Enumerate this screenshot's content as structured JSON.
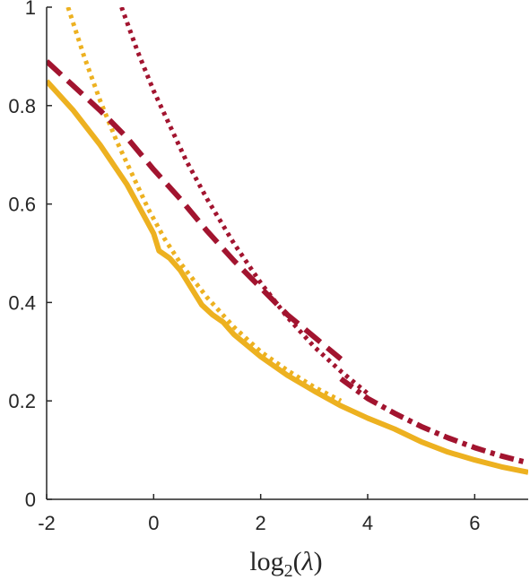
{
  "chart_data": {
    "type": "line",
    "title": "",
    "xlabel": "log2(λ)",
    "ylabel": "",
    "xlim": [
      -2,
      7
    ],
    "ylim": [
      0,
      1
    ],
    "xticks": [
      -2,
      0,
      2,
      4,
      6
    ],
    "yticks": [
      0,
      0.2,
      0.4,
      0.6,
      0.8,
      1
    ],
    "xtick_labels": [
      "-2",
      "0",
      "2",
      "4",
      "6"
    ],
    "ytick_labels": [
      "0",
      "0.2",
      "0.4",
      "0.6",
      "0.8",
      "1"
    ],
    "grid": false,
    "legend": "none",
    "colors": {
      "gold": "#EDB120",
      "crimson": "#A2142F",
      "axis": "#262626"
    },
    "series": [
      {
        "color": "#EDB120",
        "dash": "solid",
        "x": [
          -2,
          -1.5,
          -1,
          -0.5,
          0,
          0.1,
          0.3,
          0.5,
          0.7,
          0.9,
          1.1,
          1.3,
          1.5,
          2,
          2.5,
          3,
          3.5,
          4,
          4.5,
          5,
          5.5,
          6,
          6.5,
          7
        ],
        "y": [
          0.85,
          0.79,
          0.72,
          0.64,
          0.54,
          0.505,
          0.49,
          0.465,
          0.43,
          0.395,
          0.375,
          0.36,
          0.335,
          0.29,
          0.252,
          0.22,
          0.19,
          0.165,
          0.143,
          0.117,
          0.096,
          0.08,
          0.066,
          0.055
        ]
      },
      {
        "color": "#EDB120",
        "dash": "dotted",
        "x": [
          -1.6,
          -1.3,
          -1,
          -0.7,
          -0.4,
          -0.1,
          0.2,
          0.5,
          1,
          1.5,
          2,
          2.5,
          3,
          3.5
        ],
        "y": [
          1.0,
          0.9,
          0.81,
          0.73,
          0.66,
          0.59,
          0.53,
          0.48,
          0.41,
          0.35,
          0.3,
          0.262,
          0.228,
          0.2
        ]
      },
      {
        "color": "#A2142F",
        "dash": "dashed",
        "x": [
          -2,
          -1.5,
          -1,
          -0.5,
          0,
          0.5,
          1,
          1.5,
          2,
          2.5,
          3,
          3.5
        ],
        "y": [
          0.89,
          0.84,
          0.79,
          0.735,
          0.67,
          0.61,
          0.545,
          0.485,
          0.43,
          0.375,
          0.33,
          0.285
        ]
      },
      {
        "color": "#A2142F",
        "dash": "dotted",
        "x": [
          -0.6,
          -0.3,
          0,
          0.3,
          0.6,
          1,
          1.5,
          2,
          2.5,
          3,
          3.5,
          4
        ],
        "y": [
          1.0,
          0.91,
          0.83,
          0.76,
          0.69,
          0.61,
          0.52,
          0.44,
          0.37,
          0.31,
          0.26,
          0.215
        ]
      },
      {
        "color": "#A2142F",
        "dash": "dash-dot",
        "x": [
          3.5,
          4,
          4.5,
          5,
          5.5,
          6,
          6.5,
          7
        ],
        "y": [
          0.245,
          0.205,
          0.175,
          0.148,
          0.125,
          0.105,
          0.088,
          0.074
        ]
      }
    ]
  }
}
